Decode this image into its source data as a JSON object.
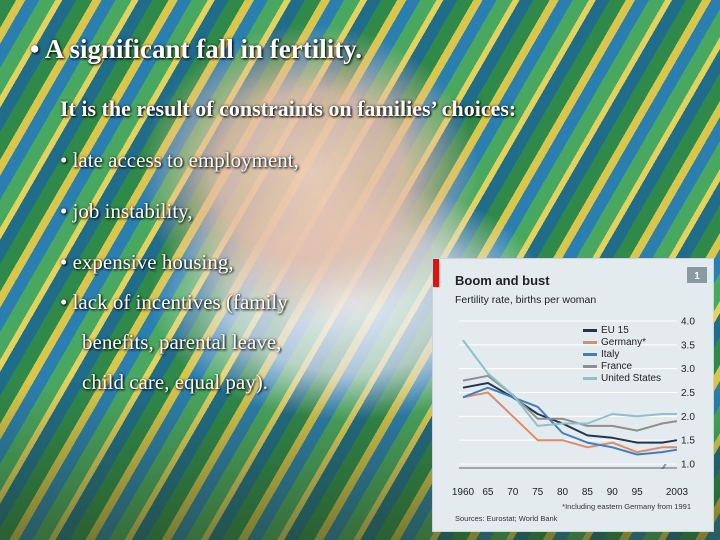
{
  "slide": {
    "title": "• A significant fall in fertility.",
    "subtitle": "It is the result of constraints on families’ choices:",
    "items": [
      "• late access to employment,",
      "• job instability,",
      "• expensive housing,",
      "• lack of incentives (family"
    ],
    "continuation": [
      "benefits, parental leave,",
      "child care, equal pay)."
    ]
  },
  "chart_data": {
    "type": "line",
    "title": "Boom and bust",
    "subtitle": "Fertility rate, births per woman",
    "badge": "1",
    "x_tick_labels": [
      "1960",
      "65",
      "70",
      "75",
      "80",
      "85",
      "90",
      "95",
      "2003"
    ],
    "ylim": [
      1.0,
      4.0
    ],
    "y_ticks": [
      "4.0",
      "3.5",
      "3.0",
      "2.5",
      "2.0",
      "1.5",
      "1.0"
    ],
    "x": [
      1960,
      1965,
      1970,
      1975,
      1980,
      1985,
      1990,
      1995,
      2000,
      2003
    ],
    "series": [
      {
        "name": "EU 15",
        "color": "#1f3550",
        "values": [
          2.6,
          2.7,
          2.4,
          2.05,
          1.85,
          1.6,
          1.55,
          1.45,
          1.45,
          1.5
        ]
      },
      {
        "name": "Germany*",
        "color": "#e08a6a",
        "values": [
          2.4,
          2.5,
          2.0,
          1.5,
          1.5,
          1.35,
          1.45,
          1.25,
          1.35,
          1.35
        ]
      },
      {
        "name": "Italy",
        "color": "#3f7fbf",
        "values": [
          2.4,
          2.6,
          2.4,
          2.2,
          1.65,
          1.45,
          1.35,
          1.2,
          1.25,
          1.3
        ]
      },
      {
        "name": "France",
        "color": "#8e8e8e",
        "values": [
          2.75,
          2.85,
          2.45,
          1.95,
          1.95,
          1.8,
          1.8,
          1.7,
          1.85,
          1.9
        ]
      },
      {
        "name": "United States",
        "color": "#8fc1c8",
        "values": [
          3.6,
          2.9,
          2.45,
          1.8,
          1.85,
          1.85,
          2.05,
          2.0,
          2.05,
          2.05
        ]
      }
    ],
    "x_break_mark": "⁄⁄",
    "footnote": "*Including eastern Germany from 1991",
    "source": "Sources: Eurostat; World Bank"
  }
}
